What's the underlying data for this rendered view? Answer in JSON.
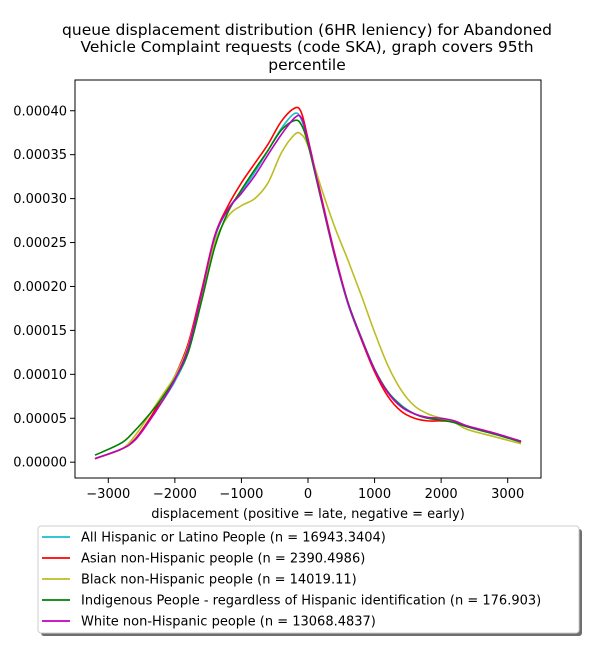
{
  "chart_data": {
    "type": "line",
    "title_lines": [
      "queue displacement distribution (6HR leniency) for Abandoned",
      "Vehicle Complaint  requests (code SKA), graph covers 95th",
      "percentile"
    ],
    "xlabel": "displacement (positive = late, negative = early)",
    "ylabel": "",
    "xlim": [
      -3500,
      3500
    ],
    "ylim": [
      -1.8e-05,
      0.000435
    ],
    "x_ticks": [
      -3000,
      -2000,
      -1000,
      0,
      1000,
      2000,
      3000
    ],
    "x_tick_labels": [
      "−3000",
      "−2000",
      "−1000",
      "0",
      "1000",
      "2000",
      "3000"
    ],
    "y_ticks": [
      0,
      5e-05,
      0.0001,
      0.00015,
      0.0002,
      0.00025,
      0.0003,
      0.00035,
      0.0004
    ],
    "y_tick_labels": [
      "0.00000",
      "0.00005",
      "0.00010",
      "0.00015",
      "0.00020",
      "0.00025",
      "0.00030",
      "0.00035",
      "0.00040"
    ],
    "grid": false,
    "legend_placement": "below plot",
    "series": [
      {
        "name": "All Hispanic or Latino People (n = 16943.3404)",
        "color": "#17becf",
        "points": [
          [
            -3200,
            4e-06
          ],
          [
            -2800,
            1.5e-05
          ],
          [
            -2600,
            2.6e-05
          ],
          [
            -2400,
            4.6e-05
          ],
          [
            -2200,
            6.8e-05
          ],
          [
            -2000,
            9.2e-05
          ],
          [
            -1800,
            0.000125
          ],
          [
            -1600,
            0.000185
          ],
          [
            -1400,
            0.000255
          ],
          [
            -1200,
            0.000288
          ],
          [
            -1000,
            0.000308
          ],
          [
            -800,
            0.00033
          ],
          [
            -600,
            0.000355
          ],
          [
            -400,
            0.00038
          ],
          [
            -200,
            0.000397
          ],
          [
            -100,
            0.00039
          ],
          [
            0,
            0.000365
          ],
          [
            200,
            0.0003
          ],
          [
            400,
            0.000235
          ],
          [
            600,
            0.00018
          ],
          [
            800,
            0.00014
          ],
          [
            1000,
            0.000105
          ],
          [
            1200,
            8e-05
          ],
          [
            1400,
            6.5e-05
          ],
          [
            1600,
            5.5e-05
          ],
          [
            1800,
            5e-05
          ],
          [
            2000,
            4.8e-05
          ],
          [
            2200,
            4.6e-05
          ],
          [
            2400,
            4e-05
          ],
          [
            2800,
            3.2e-05
          ],
          [
            3200,
            2.3e-05
          ]
        ]
      },
      {
        "name": "Asian non-Hispanic people (n = 2390.4986)",
        "color": "#ff0000",
        "points": [
          [
            -3200,
            4e-06
          ],
          [
            -2800,
            1.5e-05
          ],
          [
            -2600,
            2.6e-05
          ],
          [
            -2400,
            4.7e-05
          ],
          [
            -2200,
            7.2e-05
          ],
          [
            -2000,
            9.8e-05
          ],
          [
            -1800,
            0.000135
          ],
          [
            -1600,
            0.000195
          ],
          [
            -1400,
            0.000258
          ],
          [
            -1200,
            0.000292
          ],
          [
            -1000,
            0.000318
          ],
          [
            -800,
            0.00034
          ],
          [
            -600,
            0.000362
          ],
          [
            -400,
            0.000388
          ],
          [
            -200,
            0.000403
          ],
          [
            -100,
            0.000398
          ],
          [
            0,
            0.000368
          ],
          [
            200,
            0.000302
          ],
          [
            400,
            0.000238
          ],
          [
            600,
            0.000182
          ],
          [
            800,
            0.00014
          ],
          [
            1000,
            0.000103
          ],
          [
            1200,
            7.5e-05
          ],
          [
            1400,
            5.8e-05
          ],
          [
            1600,
            5e-05
          ],
          [
            1800,
            4.7e-05
          ],
          [
            2000,
            4.7e-05
          ],
          [
            2200,
            4.6e-05
          ],
          [
            2400,
            4.1e-05
          ],
          [
            2800,
            3.3e-05
          ],
          [
            3200,
            2.3e-05
          ]
        ]
      },
      {
        "name": "Black non-Hispanic people (n = 14019.11)",
        "color": "#bcbd22",
        "points": [
          [
            -3200,
            4e-06
          ],
          [
            -2800,
            1.5e-05
          ],
          [
            -2600,
            3e-05
          ],
          [
            -2400,
            5.2e-05
          ],
          [
            -2200,
            7.5e-05
          ],
          [
            -2000,
            9.8e-05
          ],
          [
            -1800,
            0.000132
          ],
          [
            -1600,
            0.00019
          ],
          [
            -1400,
            0.00025
          ],
          [
            -1200,
            0.00028
          ],
          [
            -1000,
            0.000292
          ],
          [
            -800,
            0.0003
          ],
          [
            -600,
            0.000318
          ],
          [
            -400,
            0.000352
          ],
          [
            -200,
            0.000373
          ],
          [
            -100,
            0.000373
          ],
          [
            0,
            0.00036
          ],
          [
            200,
            0.000312
          ],
          [
            400,
            0.000268
          ],
          [
            600,
            0.00023
          ],
          [
            800,
            0.00019
          ],
          [
            1000,
            0.000148
          ],
          [
            1200,
            0.00011
          ],
          [
            1400,
            8.2e-05
          ],
          [
            1600,
            6.4e-05
          ],
          [
            1800,
            5.5e-05
          ],
          [
            2000,
            5e-05
          ],
          [
            2200,
            4.5e-05
          ],
          [
            2400,
            3.7e-05
          ],
          [
            2800,
            2.9e-05
          ],
          [
            3200,
            2.1e-05
          ]
        ]
      },
      {
        "name": "Indigenous People - regardless of Hispanic identification (n = 176.903)",
        "color": "#008000",
        "points": [
          [
            -3200,
            8e-06
          ],
          [
            -2800,
            2.2e-05
          ],
          [
            -2600,
            3.6e-05
          ],
          [
            -2400,
            5.3e-05
          ],
          [
            -2200,
            7.2e-05
          ],
          [
            -2000,
            9.5e-05
          ],
          [
            -1800,
            0.000125
          ],
          [
            -1600,
            0.000183
          ],
          [
            -1400,
            0.000245
          ],
          [
            -1200,
            0.000285
          ],
          [
            -1000,
            0.00031
          ],
          [
            -800,
            0.000333
          ],
          [
            -600,
            0.000355
          ],
          [
            -400,
            0.000378
          ],
          [
            -200,
            0.000389
          ],
          [
            -100,
            0.000384
          ],
          [
            0,
            0.000362
          ],
          [
            200,
            0.000298
          ],
          [
            400,
            0.000235
          ],
          [
            600,
            0.000182
          ],
          [
            800,
            0.000142
          ],
          [
            1000,
            0.000106
          ],
          [
            1200,
            8e-05
          ],
          [
            1400,
            6.4e-05
          ],
          [
            1600,
            5.5e-05
          ],
          [
            1800,
            5e-05
          ],
          [
            2000,
            4.8e-05
          ],
          [
            2200,
            4.5e-05
          ],
          [
            2400,
            4e-05
          ],
          [
            2800,
            3.2e-05
          ],
          [
            3200,
            2.3e-05
          ]
        ]
      },
      {
        "name": "White non-Hispanic people (n = 13068.4837)",
        "color": "#bf00bf",
        "points": [
          [
            -3200,
            4e-06
          ],
          [
            -2800,
            1.5e-05
          ],
          [
            -2600,
            2.5e-05
          ],
          [
            -2400,
            4.5e-05
          ],
          [
            -2200,
            6.8e-05
          ],
          [
            -2000,
            9.4e-05
          ],
          [
            -1800,
            0.00013
          ],
          [
            -1600,
            0.000192
          ],
          [
            -1400,
            0.000257
          ],
          [
            -1200,
            0.000288
          ],
          [
            -1000,
            0.000306
          ],
          [
            -800,
            0.000326
          ],
          [
            -600,
            0.00035
          ],
          [
            -400,
            0.000373
          ],
          [
            -200,
            0.000392
          ],
          [
            -100,
            0.000392
          ],
          [
            0,
            0.000366
          ],
          [
            200,
            0.0003
          ],
          [
            400,
            0.000236
          ],
          [
            600,
            0.000181
          ],
          [
            800,
            0.000141
          ],
          [
            1000,
            0.000105
          ],
          [
            1200,
            7.9e-05
          ],
          [
            1400,
            6.3e-05
          ],
          [
            1600,
            5.5e-05
          ],
          [
            1800,
            5.1e-05
          ],
          [
            2000,
            5e-05
          ],
          [
            2200,
            4.7e-05
          ],
          [
            2400,
            4.1e-05
          ],
          [
            2800,
            3.3e-05
          ],
          [
            3200,
            2.4e-05
          ]
        ]
      }
    ]
  }
}
